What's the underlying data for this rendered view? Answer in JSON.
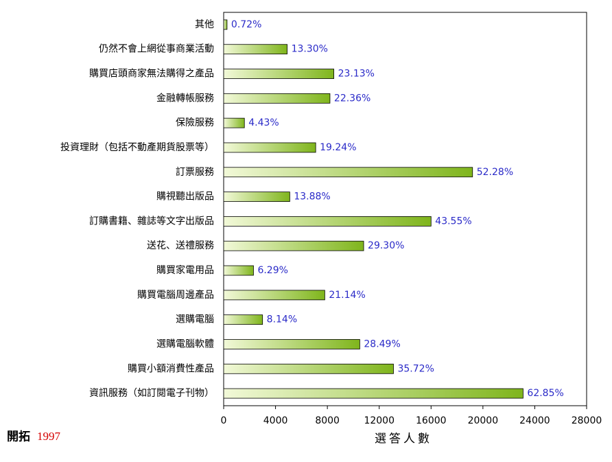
{
  "chart_data": {
    "type": "hbar",
    "categories": [
      "其他",
      "仍然不會上網從事商業活動",
      "購買店頭商家無法購得之產品",
      "金融轉帳服務",
      "保險服務",
      "投資理財（包括不動產期貨股票等）",
      "訂票服務",
      "購視聽出版品",
      "訂購書籍、雜誌等文字出版品",
      "送花、送禮服務",
      "購買家電用品",
      "購買電腦周邊產品",
      "選購電腦",
      "選購電腦軟體",
      "購買小額消費性產品",
      "資訊服務（如訂閱電子刊物）"
    ],
    "values": [
      260,
      4900,
      8500,
      8200,
      1600,
      7100,
      19200,
      5100,
      16000,
      10800,
      2300,
      7800,
      3000,
      10500,
      13100,
      23100
    ],
    "value_labels": [
      "0.72%",
      "13.30%",
      "23.13%",
      "22.36%",
      "4.43%",
      "19.24%",
      "52.28%",
      "13.88%",
      "43.55%",
      "29.30%",
      "6.29%",
      "21.14%",
      "8.14%",
      "28.49%",
      "35.72%",
      "62.85%"
    ],
    "color": "#7fb51c",
    "xlabel": "選答人數",
    "xlim": [
      0,
      28000
    ],
    "xticks": [
      0,
      4000,
      8000,
      12000,
      16000,
      20000,
      24000,
      28000
    ],
    "source": "開拓",
    "source_year": "1997"
  }
}
